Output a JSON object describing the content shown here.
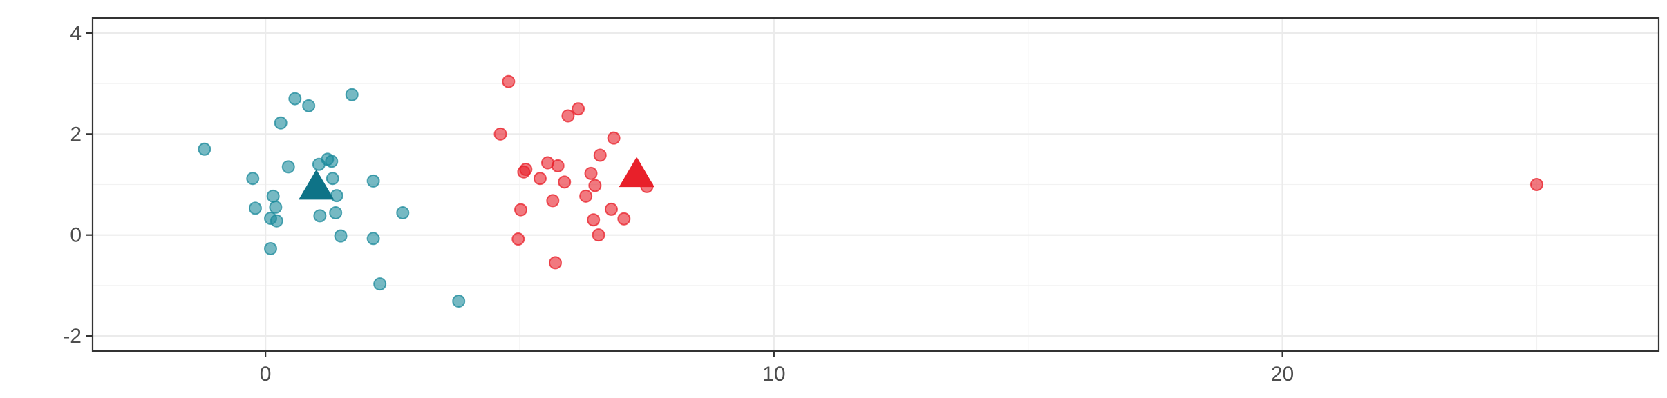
{
  "chart_data": {
    "type": "scatter",
    "title": "",
    "xlabel": "",
    "ylabel": "",
    "xlim": [
      -3.4,
      27.4
    ],
    "ylim": [
      -2.3,
      4.3
    ],
    "x_ticks": [
      0,
      10,
      20
    ],
    "x_tick_labels": [
      "0",
      "10",
      "20"
    ],
    "y_ticks": [
      -2,
      0,
      2,
      4
    ],
    "y_tick_labels": [
      "-2",
      "0",
      "2",
      "4"
    ],
    "grid": true,
    "legend": "none",
    "series": [
      {
        "color": "#1b8a9b",
        "marker": "circle",
        "opacity": 0.6,
        "points": [
          [
            -1.2,
            1.7
          ],
          [
            -0.25,
            1.12
          ],
          [
            -0.2,
            0.53
          ],
          [
            0.1,
            0.33
          ],
          [
            0.15,
            0.77
          ],
          [
            0.2,
            0.55
          ],
          [
            0.22,
            0.28
          ],
          [
            0.1,
            -0.27
          ],
          [
            0.3,
            2.22
          ],
          [
            0.45,
            1.35
          ],
          [
            0.58,
            2.7
          ],
          [
            0.85,
            2.56
          ],
          [
            1.05,
            1.4
          ],
          [
            1.22,
            1.5
          ],
          [
            1.3,
            1.46
          ],
          [
            1.32,
            1.12
          ],
          [
            1.4,
            0.78
          ],
          [
            1.38,
            0.44
          ],
          [
            1.48,
            -0.02
          ],
          [
            1.07,
            0.38
          ],
          [
            1.7,
            2.78
          ],
          [
            2.12,
            1.07
          ],
          [
            2.12,
            -0.07
          ],
          [
            2.25,
            -0.97
          ],
          [
            2.7,
            0.44
          ],
          [
            3.8,
            -1.31
          ]
        ]
      },
      {
        "color": "#e8202a",
        "marker": "circle",
        "opacity": 0.6,
        "points": [
          [
            4.62,
            2.0
          ],
          [
            4.78,
            3.04
          ],
          [
            4.97,
            -0.08
          ],
          [
            5.02,
            0.5
          ],
          [
            5.08,
            1.25
          ],
          [
            5.12,
            1.3
          ],
          [
            5.4,
            1.12
          ],
          [
            5.55,
            1.43
          ],
          [
            5.65,
            0.68
          ],
          [
            5.7,
            -0.55
          ],
          [
            5.75,
            1.37
          ],
          [
            5.88,
            1.05
          ],
          [
            5.95,
            2.36
          ],
          [
            6.15,
            2.5
          ],
          [
            6.3,
            0.77
          ],
          [
            6.4,
            1.22
          ],
          [
            6.45,
            0.3
          ],
          [
            6.48,
            0.98
          ],
          [
            6.55,
            0.0
          ],
          [
            6.58,
            1.58
          ],
          [
            6.8,
            0.51
          ],
          [
            6.85,
            1.92
          ],
          [
            7.05,
            0.32
          ],
          [
            7.5,
            0.96
          ],
          [
            25.0,
            1.0
          ]
        ]
      },
      {
        "color": "#0e7387",
        "marker": "triangle",
        "opacity": 1,
        "points": [
          [
            1.0,
            0.93
          ]
        ]
      },
      {
        "color": "#e8202a",
        "marker": "triangle",
        "opacity": 1,
        "points": [
          [
            7.3,
            1.18
          ]
        ]
      }
    ]
  }
}
